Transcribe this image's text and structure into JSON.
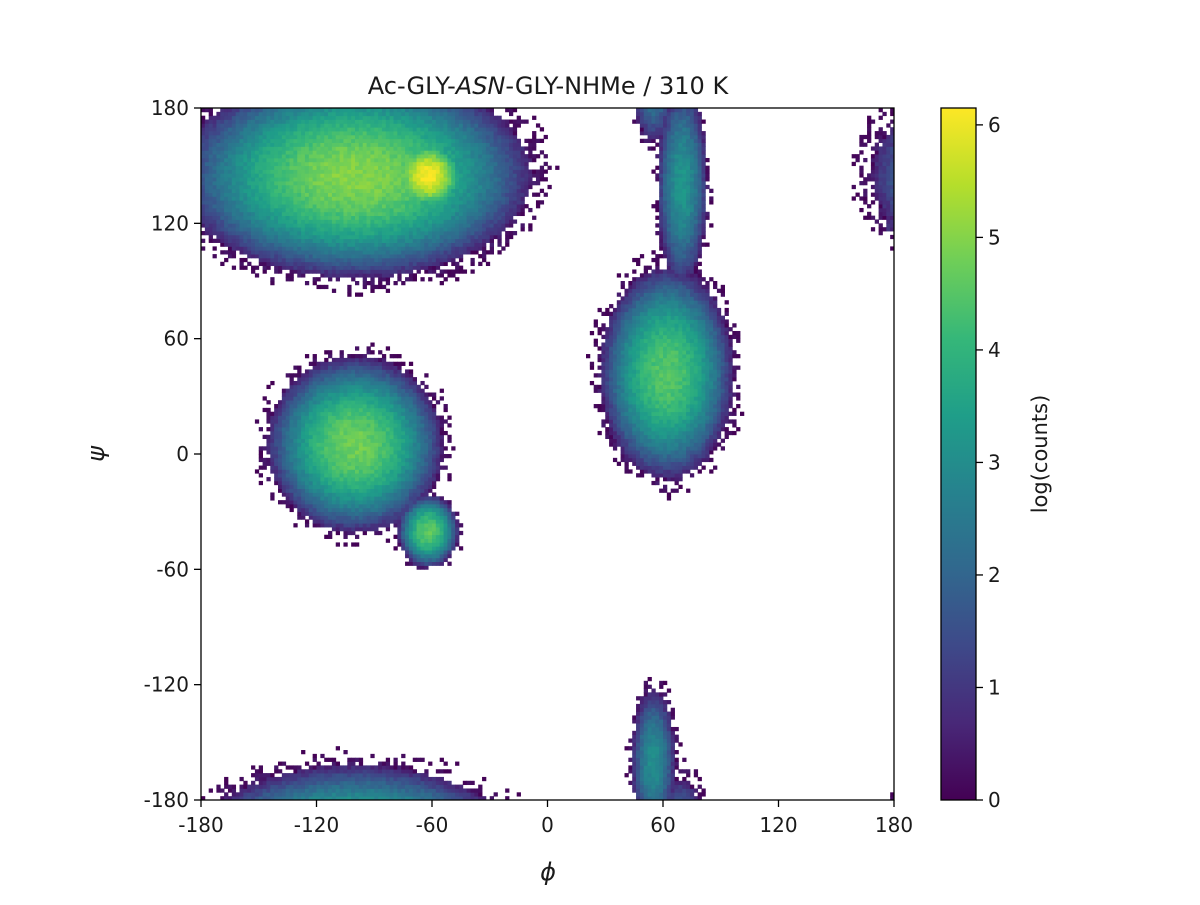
{
  "chart_data": {
    "type": "heatmap",
    "title": {
      "prefix": "Ac-GLY-",
      "italic": "ASN",
      "suffix": "-GLY-NHMe / 310 K"
    },
    "xlabel": "ϕ",
    "ylabel": "ψ",
    "xlim": [
      -180,
      180
    ],
    "ylim": [
      -180,
      180
    ],
    "x_ticks": [
      -180,
      -120,
      -60,
      0,
      60,
      120,
      180
    ],
    "y_ticks": [
      -180,
      -120,
      -60,
      0,
      60,
      120,
      180
    ],
    "x_tick_labels": [
      "-180",
      "-120",
      "-60",
      "0",
      "60",
      "120",
      "180"
    ],
    "y_tick_labels": [
      "-180",
      "-120",
      "-60",
      "0",
      "60",
      "120",
      "180"
    ],
    "colorbar": {
      "label": "log(counts)",
      "range": [
        0,
        6.15
      ],
      "ticks": [
        0,
        1,
        2,
        3,
        4,
        5,
        6
      ],
      "tick_labels": [
        "0",
        "1",
        "2",
        "3",
        "4",
        "5",
        "6"
      ],
      "colormap": "viridis",
      "colors": [
        "#440154",
        "#482878",
        "#3e4989",
        "#31688e",
        "#26828e",
        "#1f9e89",
        "#35b779",
        "#6ece58",
        "#b5de2b",
        "#fde725"
      ]
    },
    "bins": 2,
    "grid": false,
    "regions": [
      {
        "label": "beta",
        "phi_center": -100,
        "psi_center": 145,
        "phi_width": 55,
        "psi_width": 32,
        "peak_log_counts": 5.0
      },
      {
        "label": "beta-peak",
        "phi_center": -62,
        "psi_center": 145,
        "phi_width": 12,
        "psi_width": 12,
        "peak_log_counts": 6.1
      },
      {
        "label": "alpha-R",
        "phi_center": -100,
        "psi_center": 5,
        "phi_width": 28,
        "psi_width": 28,
        "peak_log_counts": 4.8
      },
      {
        "label": "alpha-R-tail",
        "phi_center": -62,
        "psi_center": -40,
        "phi_width": 10,
        "psi_width": 12,
        "peak_log_counts": 4.6
      },
      {
        "label": "alpha-L",
        "phi_center": 62,
        "psi_center": 42,
        "phi_width": 22,
        "psi_width": 35,
        "peak_log_counts": 4.5
      },
      {
        "label": "upper-right-strip",
        "phi_center": 70,
        "psi_center": 140,
        "phi_width": 10,
        "psi_width": 40,
        "peak_log_counts": 3.2
      },
      {
        "label": "lower-right-strip",
        "phi_center": 55,
        "psi_center": -160,
        "phi_width": 9,
        "psi_width": 30,
        "peak_log_counts": 3.0
      },
      {
        "label": "bottom-edge",
        "phi_center": -100,
        "psi_center": -180,
        "phi_width": 45,
        "psi_width": 5,
        "peak_log_counts": 1.5
      },
      {
        "label": "far-right-patch",
        "phi_center": 178,
        "psi_center": 120,
        "phi_width": 4,
        "psi_width": 10,
        "peak_log_counts": 1.0
      }
    ]
  }
}
